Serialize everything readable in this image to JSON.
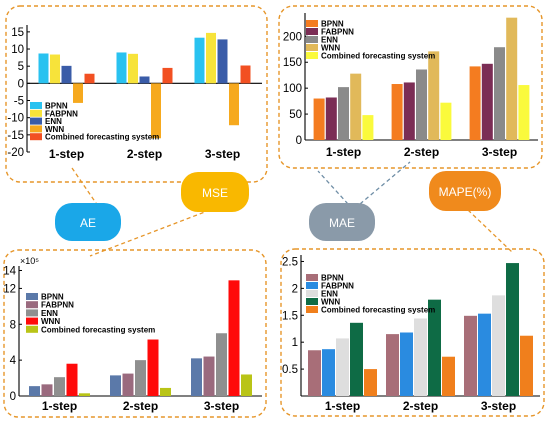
{
  "bubbles": [
    {
      "label": "AE",
      "color": "#1aa7e8"
    },
    {
      "label": "MSE",
      "color": "#f9b800"
    },
    {
      "label": "MAE",
      "color": "#8a9aa9"
    },
    {
      "label": "MAPE(%)",
      "color": "#f08a1c"
    }
  ],
  "colors": {
    "frame": "#e6962a",
    "connector": "#e6962a",
    "connector_mae": "#6f8ea6"
  },
  "chart_data": [
    {
      "id": "ae",
      "type": "bar",
      "categories": [
        "1-step",
        "2-step",
        "3-step"
      ],
      "ylim": [
        -20,
        17
      ],
      "yticks": [
        -20,
        -15,
        -10,
        -5,
        0,
        5,
        10,
        15
      ],
      "legend_position": "bottom-left",
      "series": [
        {
          "name": "BPNN",
          "color": "#29c2f0",
          "values": [
            8.7,
            9.0,
            13.3
          ]
        },
        {
          "name": "FABPNN",
          "color": "#f7e33a",
          "values": [
            8.4,
            8.6,
            14.7
          ]
        },
        {
          "name": "ENN",
          "color": "#3a5ca8",
          "values": [
            5.1,
            2.0,
            12.8
          ]
        },
        {
          "name": "WNN",
          "color": "#f6a91e",
          "values": [
            -5.7,
            -16.0,
            -12.2
          ]
        },
        {
          "name": "Combined forecasting system",
          "color": "#f25022",
          "values": [
            2.8,
            4.5,
            5.2
          ]
        }
      ]
    },
    {
      "id": "mae",
      "type": "bar",
      "categories": [
        "1-step",
        "2-step",
        "3-step"
      ],
      "ylim": [
        0,
        245
      ],
      "yticks": [
        0,
        50,
        100,
        150,
        200
      ],
      "legend_position": "top-left",
      "series": [
        {
          "name": "BPNN",
          "color": "#f47c20",
          "values": [
            80,
            108,
            142
          ]
        },
        {
          "name": "FABPNN",
          "color": "#7b2d55",
          "values": [
            82,
            111,
            147
          ]
        },
        {
          "name": "ENN",
          "color": "#8a8a8a",
          "values": [
            102,
            136,
            179
          ]
        },
        {
          "name": "WNN",
          "color": "#e1b95a",
          "values": [
            128,
            171,
            236
          ]
        },
        {
          "name": "Combined forecasting system",
          "color": "#fafa3c",
          "values": [
            48,
            72,
            106
          ]
        }
      ]
    },
    {
      "id": "mse",
      "type": "bar",
      "categories": [
        "1-step",
        "2-step",
        "3-step"
      ],
      "ylim": [
        0,
        14.5
      ],
      "yticks": [
        0,
        4,
        8,
        12
      ],
      "ytick_extra": [
        14
      ],
      "y_multiplier": "×10⁵",
      "legend_position": "top-left",
      "series": [
        {
          "name": "BPNN",
          "color": "#5b79a9",
          "values": [
            1.1,
            2.3,
            4.2
          ]
        },
        {
          "name": "FABPNN",
          "color": "#9a6a7e",
          "values": [
            1.3,
            2.5,
            4.4
          ]
        },
        {
          "name": "ENN",
          "color": "#8f8f8f",
          "values": [
            2.1,
            4.0,
            7.0
          ]
        },
        {
          "name": "WNN",
          "color": "#ff0a0a",
          "values": [
            3.6,
            6.3,
            12.9
          ]
        },
        {
          "name": "Combined forecasting system",
          "color": "#b9c417",
          "values": [
            0.3,
            0.9,
            2.4
          ]
        }
      ]
    },
    {
      "id": "mape",
      "type": "bar",
      "categories": [
        "1-step",
        "2-step",
        "3-step"
      ],
      "ylim": [
        0,
        2.62
      ],
      "yticks": [
        0.5,
        1,
        1.5,
        2,
        2.5
      ],
      "legend_position": "top-left",
      "series": [
        {
          "name": "BPNN",
          "color": "#a86e78",
          "values": [
            0.85,
            1.15,
            1.49
          ]
        },
        {
          "name": "FABPNN",
          "color": "#2a8be0",
          "values": [
            0.87,
            1.18,
            1.53
          ]
        },
        {
          "name": "ENN",
          "color": "#dedede",
          "values": [
            1.07,
            1.44,
            1.87
          ]
        },
        {
          "name": "WNN",
          "color": "#0e6b45",
          "values": [
            1.36,
            1.79,
            2.47
          ]
        },
        {
          "name": "Combined forecasting system",
          "color": "#f07f1c",
          "values": [
            0.5,
            0.73,
            1.12
          ]
        }
      ]
    }
  ]
}
